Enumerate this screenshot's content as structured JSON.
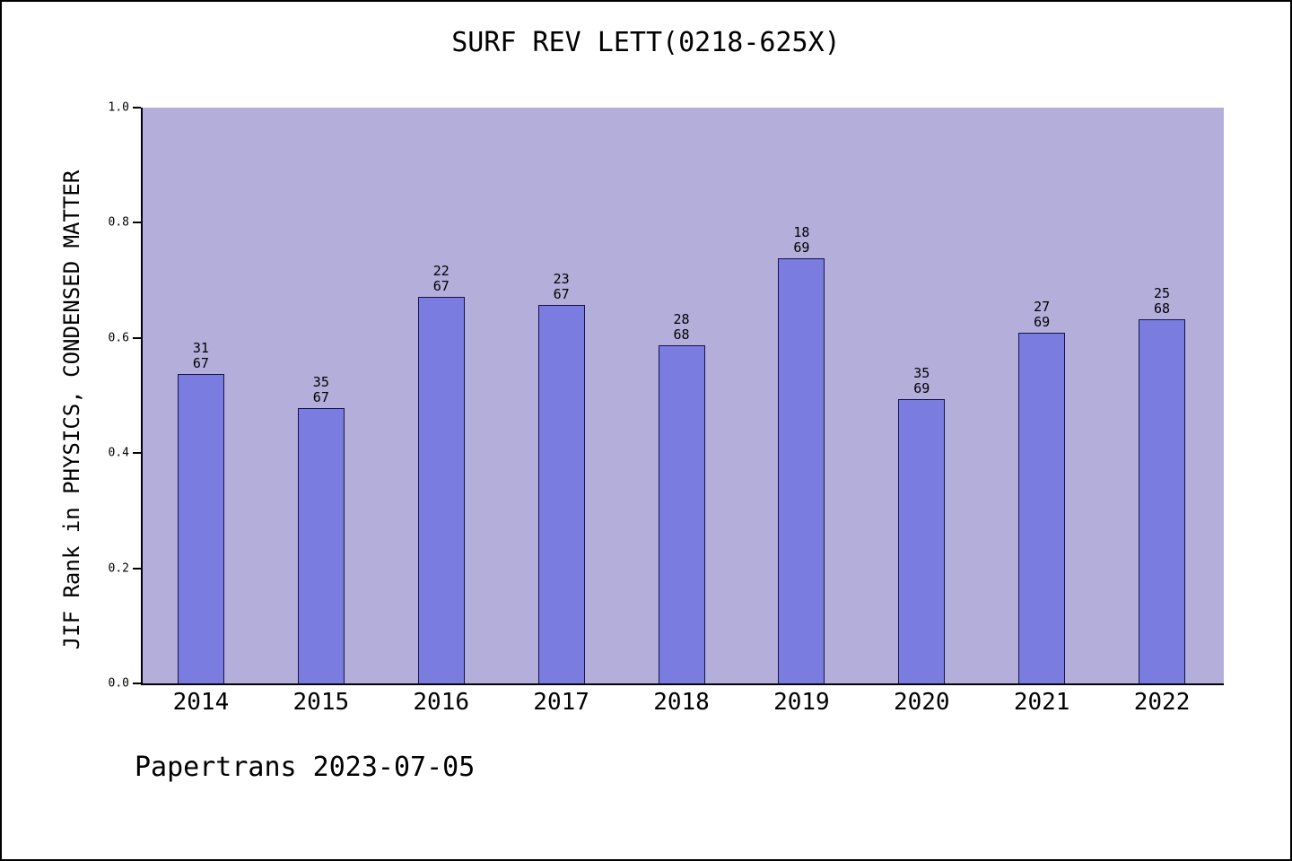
{
  "footer": {
    "text": "Papertrans 2023-07-05"
  },
  "colors": {
    "plot_background": "#b3aeda",
    "bar_fill": "#7b7ce0",
    "bar_edge": "#14144a",
    "axis": "#000000"
  },
  "chart_data": {
    "type": "bar",
    "title": "SURF REV LETT(0218-625X)",
    "ylabel": "JIF Rank in PHYSICS, CONDENSED MATTER",
    "xlabel": "",
    "ylim": [
      0.0,
      1.0
    ],
    "yticks": [
      0.0,
      0.2,
      0.4,
      0.6,
      0.8,
      1.0
    ],
    "grid": false,
    "legend_position": "none",
    "categories": [
      "2014",
      "2015",
      "2016",
      "2017",
      "2018",
      "2019",
      "2020",
      "2021",
      "2022"
    ],
    "series": [
      {
        "name": "JIF Rank in PHYSICS, CONDENSED MATTER",
        "values": [
          0.537,
          0.478,
          0.672,
          0.657,
          0.588,
          0.739,
          0.493,
          0.609,
          0.632
        ]
      }
    ],
    "bar_labels": [
      {
        "top": "31",
        "bottom": "67"
      },
      {
        "top": "35",
        "bottom": "67"
      },
      {
        "top": "22",
        "bottom": "67"
      },
      {
        "top": "23",
        "bottom": "67"
      },
      {
        "top": "28",
        "bottom": "68"
      },
      {
        "top": "18",
        "bottom": "69"
      },
      {
        "top": "35",
        "bottom": "69"
      },
      {
        "top": "27",
        "bottom": "69"
      },
      {
        "top": "25",
        "bottom": "68"
      }
    ]
  }
}
